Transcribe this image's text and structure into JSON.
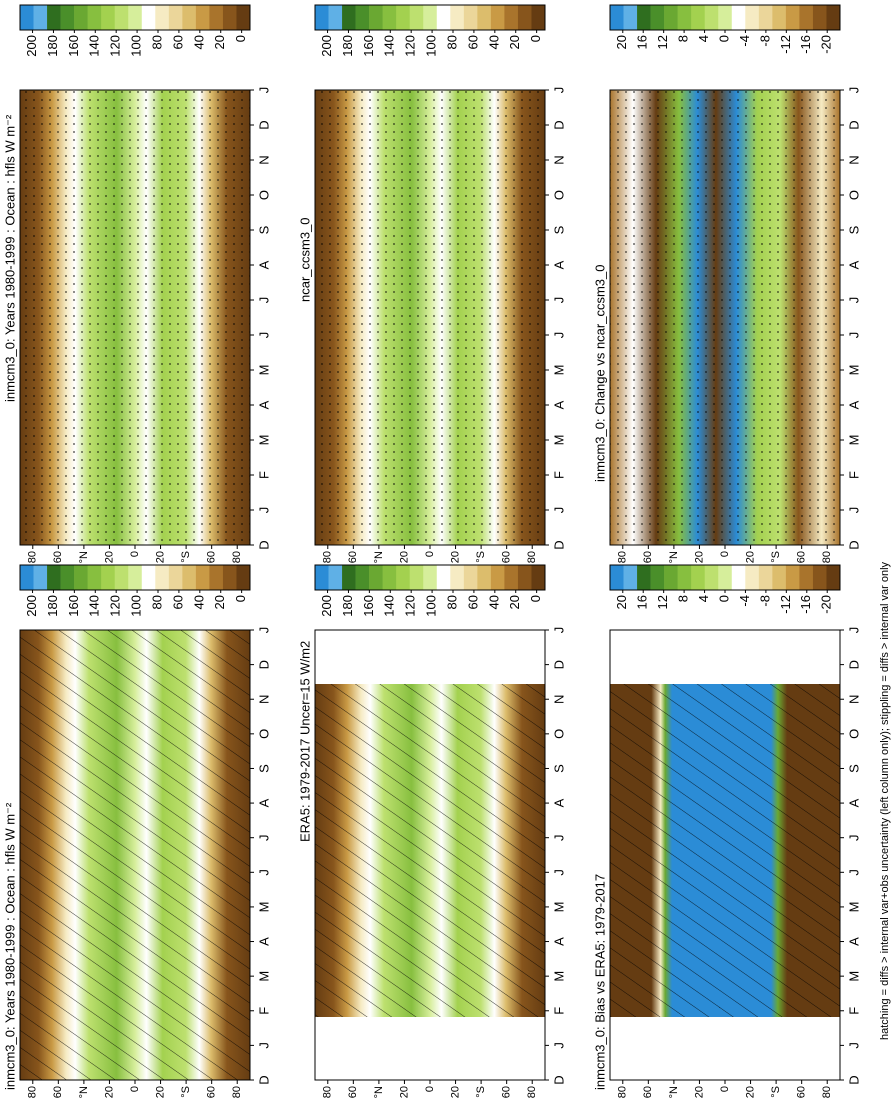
{
  "chart_data": [
    {
      "type": "contour",
      "title": "inmcm3_0: Years 1980-1999 : Ocean : hfls W m⁻²",
      "categories": [
        "D",
        "J",
        "F",
        "M",
        "A",
        "M",
        "J",
        "J",
        "A",
        "S",
        "O",
        "N",
        "D",
        "J"
      ],
      "ylim": [
        90,
        -90
      ],
      "yticks": [
        80,
        60,
        {
          "value": 40,
          "label": "°N"
        },
        20,
        0,
        {
          "value": -20,
          "label": "20"
        },
        {
          "value": -40,
          "label": "°S"
        },
        {
          "value": -60,
          "label": "60"
        },
        {
          "value": -80,
          "label": "80"
        }
      ],
      "colorbar": {
        "lim": [
          -8,
          212
        ],
        "ticks": [
          200,
          180,
          160,
          140,
          120,
          100,
          80,
          60,
          40,
          20,
          0
        ],
        "colors": [
          "#2b8cd6",
          "#5fb0e6",
          "#2f6e1f",
          "#4a8f2a",
          "#6aa832",
          "#87bf3f",
          "#a3d14f",
          "#bde06f",
          "#d6ee9b",
          "#ffffff",
          "#f6ebc3",
          "#ebd69a",
          "#dcbd6c",
          "#c99a45",
          "#a9742c",
          "#87551c",
          "#653c12"
        ]
      }
    },
    {
      "type": "contour",
      "title": "ERA5: 1979-2017 Uncer=15 W/m2",
      "categories": [
        "D",
        "J",
        "F",
        "M",
        "A",
        "M",
        "J",
        "J",
        "A",
        "S",
        "O",
        "N",
        "D",
        "J"
      ],
      "ylim": [
        90,
        -90
      ],
      "yticks": [
        80,
        60,
        {
          "value": 40,
          "label": "°N"
        },
        20,
        0,
        {
          "value": -20,
          "label": "20"
        },
        {
          "value": -40,
          "label": "°S"
        },
        {
          "value": -60,
          "label": "60"
        },
        {
          "value": -80,
          "label": "80"
        }
      ],
      "colorbar": {
        "lim": [
          -8,
          212
        ],
        "ticks": [
          200,
          180,
          160,
          140,
          120,
          100,
          80,
          60,
          40,
          20,
          0
        ],
        "colors": [
          "#2b8cd6",
          "#5fb0e6",
          "#2f6e1f",
          "#4a8f2a",
          "#6aa832",
          "#87bf3f",
          "#a3d14f",
          "#bde06f",
          "#d6ee9b",
          "#ffffff",
          "#f6ebc3",
          "#ebd69a",
          "#dcbd6c",
          "#c99a45",
          "#a9742c",
          "#87551c",
          "#653c12"
        ]
      }
    },
    {
      "type": "contour",
      "title": "inmcm3_0: Bias vs ERA5: 1979-2017",
      "categories": [
        "D",
        "J",
        "F",
        "M",
        "A",
        "M",
        "J",
        "J",
        "A",
        "S",
        "O",
        "N",
        "D",
        "J"
      ],
      "ylim": [
        90,
        -90
      ],
      "yticks": [
        80,
        60,
        {
          "value": 40,
          "label": "°N"
        },
        20,
        0,
        {
          "value": -20,
          "label": "20"
        },
        {
          "value": -40,
          "label": "°S"
        },
        {
          "value": -60,
          "label": "60"
        },
        {
          "value": -80,
          "label": "80"
        }
      ],
      "colorbar": {
        "lim": [
          -22.5,
          22.5
        ],
        "ticks": [
          20,
          16,
          12,
          8,
          4,
          0,
          -4,
          -8,
          -12,
          -16,
          -20
        ],
        "colors": [
          "#2b8cd6",
          "#5fb0e6",
          "#2f6e1f",
          "#4a8f2a",
          "#6aa832",
          "#87bf3f",
          "#a3d14f",
          "#bde06f",
          "#d6ee9b",
          "#ffffff",
          "#f6ebc3",
          "#ebd69a",
          "#dcbd6c",
          "#c99a45",
          "#a9742c",
          "#87551c",
          "#653c12"
        ]
      }
    },
    {
      "type": "contour",
      "title": "inmcm3_0: Years 1980-1999 : Ocean : hfls W m⁻²",
      "categories": [
        "D",
        "J",
        "F",
        "M",
        "A",
        "M",
        "J",
        "J",
        "A",
        "S",
        "O",
        "N",
        "D",
        "J"
      ],
      "ylim": [
        90,
        -90
      ],
      "yticks": [
        80,
        60,
        {
          "value": 40,
          "label": "°N"
        },
        20,
        0,
        {
          "value": -20,
          "label": "20"
        },
        {
          "value": -40,
          "label": "°S"
        },
        {
          "value": -60,
          "label": "60"
        },
        {
          "value": -80,
          "label": "80"
        }
      ],
      "colorbar": {
        "lim": [
          -8,
          212
        ],
        "ticks": [
          200,
          180,
          160,
          140,
          120,
          100,
          80,
          60,
          40,
          20,
          0
        ],
        "colors": [
          "#2b8cd6",
          "#5fb0e6",
          "#2f6e1f",
          "#4a8f2a",
          "#6aa832",
          "#87bf3f",
          "#a3d14f",
          "#bde06f",
          "#d6ee9b",
          "#ffffff",
          "#f6ebc3",
          "#ebd69a",
          "#dcbd6c",
          "#c99a45",
          "#a9742c",
          "#87551c",
          "#653c12"
        ]
      }
    },
    {
      "type": "contour",
      "title": "ncar_ccsm3_0",
      "categories": [
        "D",
        "J",
        "F",
        "M",
        "A",
        "M",
        "J",
        "J",
        "A",
        "S",
        "O",
        "N",
        "D",
        "J"
      ],
      "ylim": [
        90,
        -90
      ],
      "yticks": [
        80,
        60,
        {
          "value": 40,
          "label": "°N"
        },
        20,
        0,
        {
          "value": -20,
          "label": "20"
        },
        {
          "value": -40,
          "label": "°S"
        },
        {
          "value": -60,
          "label": "60"
        },
        {
          "value": -80,
          "label": "80"
        }
      ],
      "colorbar": {
        "lim": [
          -8,
          212
        ],
        "ticks": [
          200,
          180,
          160,
          140,
          120,
          100,
          80,
          60,
          40,
          20,
          0
        ],
        "colors": [
          "#2b8cd6",
          "#5fb0e6",
          "#2f6e1f",
          "#4a8f2a",
          "#6aa832",
          "#87bf3f",
          "#a3d14f",
          "#bde06f",
          "#d6ee9b",
          "#ffffff",
          "#f6ebc3",
          "#ebd69a",
          "#dcbd6c",
          "#c99a45",
          "#a9742c",
          "#87551c",
          "#653c12"
        ]
      }
    },
    {
      "type": "contour",
      "title": "inmcm3_0: Change vs ncar_ccsm3_0",
      "categories": [
        "D",
        "J",
        "F",
        "M",
        "A",
        "M",
        "J",
        "J",
        "A",
        "S",
        "O",
        "N",
        "D",
        "J"
      ],
      "ylim": [
        90,
        -90
      ],
      "yticks": [
        80,
        60,
        {
          "value": 40,
          "label": "°N"
        },
        20,
        0,
        {
          "value": -20,
          "label": "20"
        },
        {
          "value": -40,
          "label": "°S"
        },
        {
          "value": -60,
          "label": "60"
        },
        {
          "value": -80,
          "label": "80"
        }
      ],
      "colorbar": {
        "lim": [
          -22.5,
          22.5
        ],
        "ticks": [
          20,
          16,
          12,
          8,
          4,
          0,
          -4,
          -8,
          -12,
          -16,
          -20
        ],
        "colors": [
          "#2b8cd6",
          "#5fb0e6",
          "#2f6e1f",
          "#4a8f2a",
          "#6aa832",
          "#87bf3f",
          "#a3d14f",
          "#bde06f",
          "#d6ee9b",
          "#ffffff",
          "#f6ebc3",
          "#ebd69a",
          "#dcbd6c",
          "#c99a45",
          "#a9742c",
          "#87551c",
          "#653c12"
        ]
      }
    }
  ],
  "note": "hatching = diffs > internal var+obs uncertainty (left column only); stippling = diffs > internal var only"
}
